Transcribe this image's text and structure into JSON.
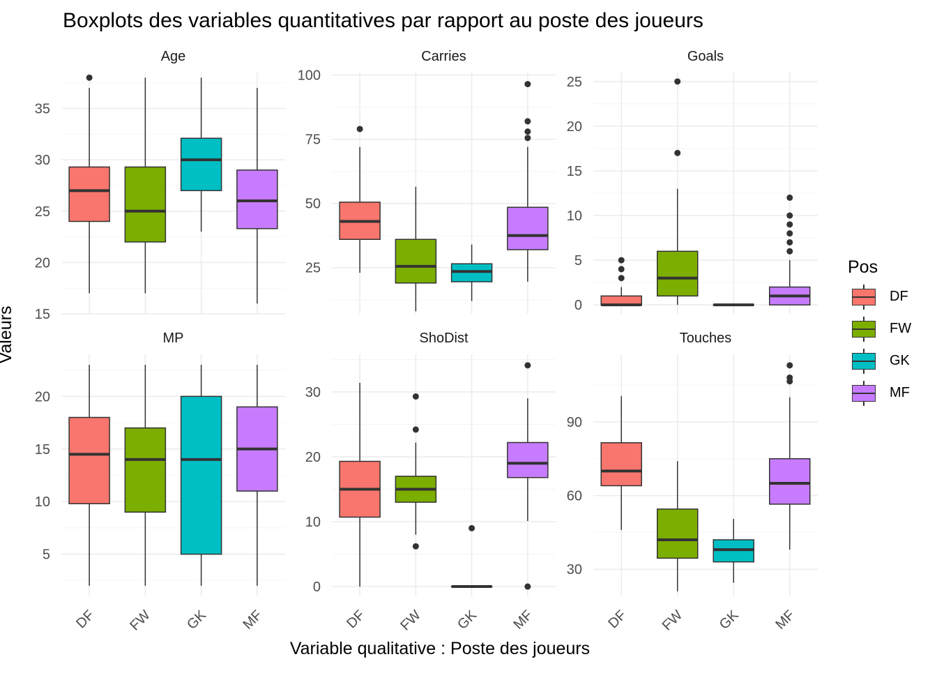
{
  "title": "Boxplots des variables quantitatives par rapport au poste des joueurs",
  "ylabel": "Valeurs",
  "xlabel": "Variable qualitative : Poste des joueurs",
  "legend": {
    "title": "Pos",
    "items": [
      {
        "label": "DF",
        "color": "#F8766D"
      },
      {
        "label": "FW",
        "color": "#7CAE00"
      },
      {
        "label": "GK",
        "color": "#00BFC4"
      },
      {
        "label": "MF",
        "color": "#C77CFF"
      }
    ]
  },
  "chart_data": {
    "type": "boxplot",
    "facet_layout": "2 rows x 3 columns, free y scales",
    "categories": [
      "DF",
      "FW",
      "GK",
      "MF"
    ],
    "grid": true,
    "legend_position": "right",
    "panels": [
      {
        "name": "Age",
        "ylim": [
          15,
          38.5
        ],
        "yticks": [
          15,
          20,
          25,
          30,
          35
        ],
        "boxes": [
          {
            "category": "DF",
            "min": 17,
            "q1": 24,
            "median": 27,
            "q3": 29.3,
            "max": 37,
            "outliers": [
              38
            ]
          },
          {
            "category": "FW",
            "min": 17,
            "q1": 22,
            "median": 25,
            "q3": 29.3,
            "max": 38,
            "outliers": []
          },
          {
            "category": "GK",
            "min": 23,
            "q1": 27,
            "median": 30,
            "q3": 32.1,
            "max": 38,
            "outliers": []
          },
          {
            "category": "MF",
            "min": 16,
            "q1": 23.3,
            "median": 26,
            "q3": 29,
            "max": 37,
            "outliers": []
          }
        ]
      },
      {
        "name": "Carries",
        "ylim": [
          7,
          101
        ],
        "yticks": [
          25,
          50,
          75,
          100
        ],
        "boxes": [
          {
            "category": "DF",
            "min": 23,
            "q1": 36,
            "median": 43,
            "q3": 50.5,
            "max": 72,
            "outliers": [
              79
            ]
          },
          {
            "category": "FW",
            "min": 8,
            "q1": 19,
            "median": 25.5,
            "q3": 36,
            "max": 56.5,
            "outliers": []
          },
          {
            "category": "GK",
            "min": 12,
            "q1": 19.5,
            "median": 23.5,
            "q3": 26.5,
            "max": 34,
            "outliers": []
          },
          {
            "category": "MF",
            "min": 19.5,
            "q1": 32,
            "median": 37.5,
            "q3": 48.5,
            "max": 72,
            "outliers": [
              75.5,
              78,
              82,
              96.5
            ]
          }
        ]
      },
      {
        "name": "Goals",
        "ylim": [
          -1,
          26
        ],
        "yticks": [
          0,
          5,
          10,
          15,
          20,
          25
        ],
        "boxes": [
          {
            "category": "DF",
            "min": 0,
            "q1": 0,
            "median": 0,
            "q3": 1,
            "max": 2,
            "outliers": [
              3,
              4,
              5
            ]
          },
          {
            "category": "FW",
            "min": 0,
            "q1": 1,
            "median": 3,
            "q3": 6,
            "max": 13,
            "outliers": [
              17,
              25
            ]
          },
          {
            "category": "GK",
            "min": 0,
            "q1": 0,
            "median": 0,
            "q3": 0,
            "max": 0,
            "outliers": []
          },
          {
            "category": "MF",
            "min": 0,
            "q1": 0,
            "median": 1,
            "q3": 2,
            "max": 5,
            "outliers": [
              6,
              7,
              8,
              9,
              10,
              12
            ]
          }
        ]
      },
      {
        "name": "MP",
        "ylim": [
          1,
          24
        ],
        "yticks": [
          5,
          10,
          15,
          20
        ],
        "boxes": [
          {
            "category": "DF",
            "min": 2,
            "q1": 9.8,
            "median": 14.5,
            "q3": 18,
            "max": 23,
            "outliers": []
          },
          {
            "category": "FW",
            "min": 2,
            "q1": 9,
            "median": 14,
            "q3": 17,
            "max": 23,
            "outliers": []
          },
          {
            "category": "GK",
            "min": 2,
            "q1": 5,
            "median": 14,
            "q3": 20,
            "max": 23,
            "outliers": []
          },
          {
            "category": "MF",
            "min": 2,
            "q1": 11,
            "median": 15,
            "q3": 19,
            "max": 23,
            "outliers": []
          }
        ]
      },
      {
        "name": "ShoDist",
        "ylim": [
          -1.5,
          35.8
        ],
        "yticks": [
          0,
          10,
          20,
          30
        ],
        "boxes": [
          {
            "category": "DF",
            "min": 0,
            "q1": 10.7,
            "median": 15,
            "q3": 19.3,
            "max": 31.4,
            "outliers": []
          },
          {
            "category": "FW",
            "min": 8,
            "q1": 13,
            "median": 15,
            "q3": 17,
            "max": 22.2,
            "outliers": [
              6.2,
              24.2,
              29.3
            ]
          },
          {
            "category": "GK",
            "min": 0,
            "q1": 0,
            "median": 0,
            "q3": 0,
            "max": 0,
            "outliers": [
              9
            ]
          },
          {
            "category": "MF",
            "min": 10.1,
            "q1": 16.8,
            "median": 19,
            "q3": 22.2,
            "max": 29,
            "outliers": [
              0,
              34.1
            ]
          }
        ]
      },
      {
        "name": "Touches",
        "ylim": [
          19,
          117.5
        ],
        "yticks": [
          30,
          60,
          90
        ],
        "boxes": [
          {
            "category": "DF",
            "min": 46,
            "q1": 64,
            "median": 70,
            "q3": 81.5,
            "max": 100.5,
            "outliers": []
          },
          {
            "category": "FW",
            "min": 21,
            "q1": 34.5,
            "median": 42,
            "q3": 54.5,
            "max": 74,
            "outliers": []
          },
          {
            "category": "GK",
            "min": 24.5,
            "q1": 33,
            "median": 38,
            "q3": 42,
            "max": 50.5,
            "outliers": []
          },
          {
            "category": "MF",
            "min": 38,
            "q1": 56.5,
            "median": 65,
            "q3": 75,
            "max": 100,
            "outliers": [
              106.5,
              108,
              113
            ]
          }
        ]
      }
    ]
  }
}
